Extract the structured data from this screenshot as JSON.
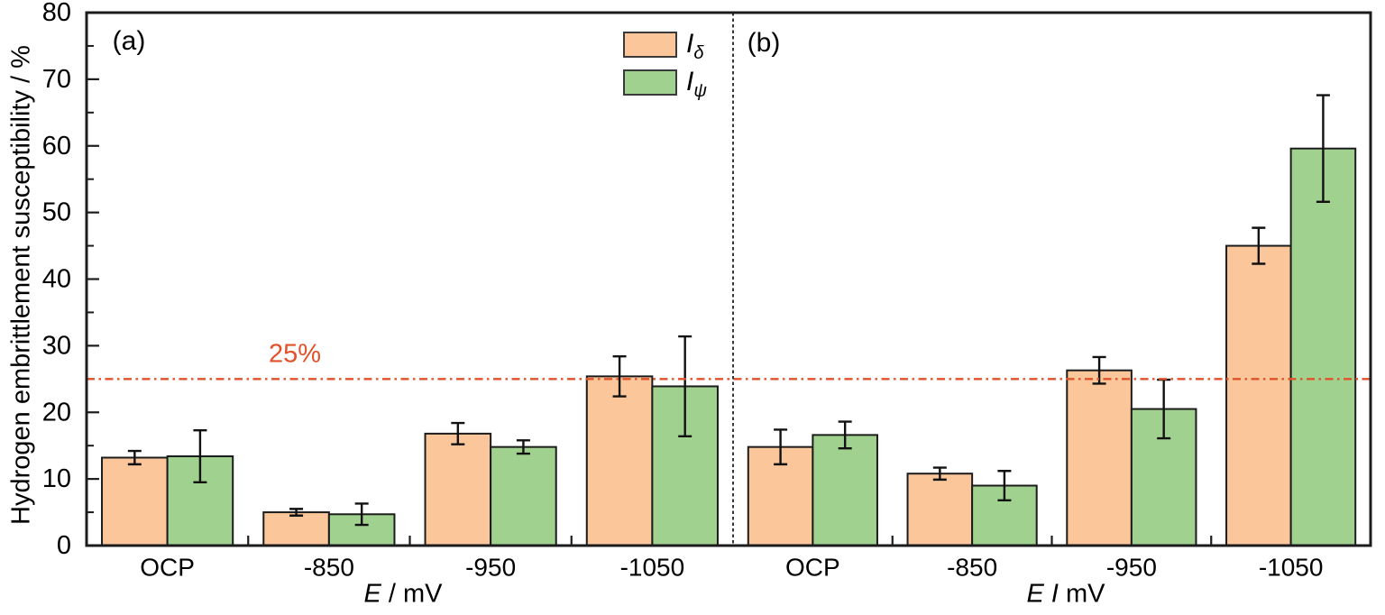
{
  "chart_data": {
    "type": "bar",
    "title": "",
    "ylabel": "Hydrogen embrittlement susceptibility / %",
    "ylim": [
      0,
      80
    ],
    "ytick_step": 10,
    "minor_tick_step": 5,
    "grid": false,
    "legend_position": "top-center",
    "categories": [
      "OCP",
      "-850",
      "-950",
      "-1050"
    ],
    "legend": [
      {
        "symbol": "I",
        "subscript": "δ",
        "series": "I_delta",
        "color": "#fac69a"
      },
      {
        "symbol": "I",
        "subscript": "ψ",
        "series": "I_psi",
        "color": "#a1d18e"
      }
    ],
    "reference_line": {
      "value": 25,
      "label": "25%",
      "color": "#e2512a",
      "style": "dash-dot"
    },
    "panels": [
      {
        "label": "(a)",
        "xlabel_parts": [
          "E",
          " / mV"
        ],
        "series": [
          {
            "name": "I_delta",
            "values": [
              13.2,
              5.0,
              16.8,
              25.4
            ],
            "errors": [
              1.0,
              0.5,
              1.6,
              3.0
            ]
          },
          {
            "name": "I_psi",
            "values": [
              13.4,
              4.7,
              14.8,
              23.9
            ],
            "errors": [
              3.9,
              1.6,
              1.0,
              7.5
            ]
          }
        ]
      },
      {
        "label": "(b)",
        "xlabel_parts": [
          "E",
          " I ",
          "mV"
        ],
        "series": [
          {
            "name": "I_delta",
            "values": [
              14.8,
              10.8,
              26.3,
              45.0
            ],
            "errors": [
              2.6,
              0.9,
              2.0,
              2.7
            ]
          },
          {
            "name": "I_psi",
            "values": [
              16.6,
              9.0,
              20.5,
              59.6
            ],
            "errors": [
              2.0,
              2.2,
              4.4,
              8.0
            ]
          }
        ]
      }
    ]
  }
}
